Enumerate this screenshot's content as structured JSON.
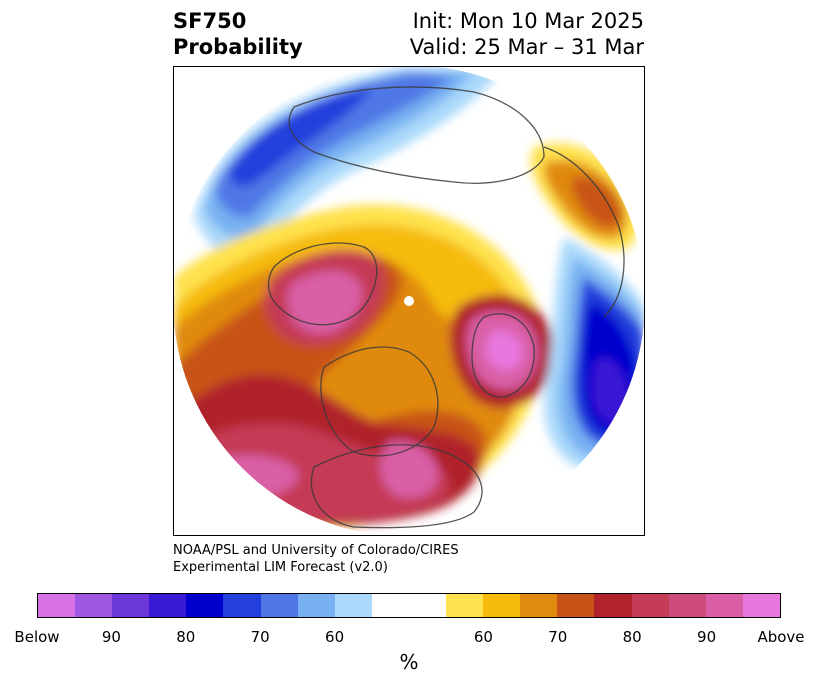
{
  "title": {
    "variable": "SF750",
    "subtitle": "Probability",
    "init": "Init: Mon 10 Mar 2025",
    "valid": "Valid: 25 Mar – 31 Mar"
  },
  "credit": {
    "line1": "NOAA/PSL and University of Colorado/CIRES",
    "line2": "Experimental LIM Forecast (v2.0)"
  },
  "colorbar": {
    "unit": "%",
    "colors": [
      "#d971e6",
      "#9e57e0",
      "#6d38d9",
      "#3a19d4",
      "#0000cc",
      "#2340dc",
      "#4f78e6",
      "#77b1f1",
      "#aad9fb",
      "#ffffff",
      "#ffffff",
      "#ffe24d",
      "#f5bb0a",
      "#e08a10",
      "#c85318",
      "#b0232b",
      "#c43b55",
      "#cd4b7c",
      "#d95ea6",
      "#e878df"
    ],
    "labels": [
      "Below",
      "90",
      "80",
      "70",
      "60",
      "60",
      "70",
      "80",
      "90",
      "Above"
    ]
  },
  "map": {
    "projection": "north-polar-stereographic",
    "regions": [
      {
        "name": "north-pacific-below",
        "color": "#4f78e6"
      },
      {
        "name": "aleutian-deep-below",
        "color": "#2340dc"
      },
      {
        "name": "east-pacific-above",
        "color": "#c43b55"
      },
      {
        "name": "north-america-above",
        "color": "#e08a10"
      },
      {
        "name": "central-us-max",
        "color": "#d95ea6"
      },
      {
        "name": "north-atlantic-below",
        "color": "#0000cc"
      },
      {
        "name": "greenland-above",
        "color": "#d95ea6"
      },
      {
        "name": "siberia-above",
        "color": "#c43b55"
      },
      {
        "name": "europe-above",
        "color": "#c85318"
      },
      {
        "name": "eurasia-neutral",
        "color": "#ffffff"
      }
    ]
  }
}
